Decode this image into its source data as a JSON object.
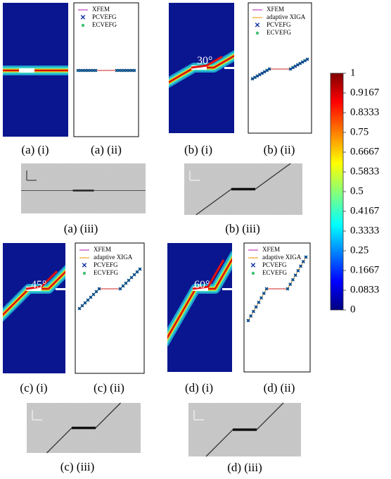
{
  "panels": {
    "a_i": {
      "caption": "(a) (i)"
    },
    "a_ii": {
      "caption": "(a) (ii)",
      "legend": [
        "XFEM",
        "PCVEFG",
        "ECVEFG"
      ]
    },
    "b_i": {
      "caption": "(b) (i)",
      "angle": "30°"
    },
    "b_ii": {
      "caption": "(b) (ii)",
      "legend": [
        "XFEM",
        "adaptive XIGA",
        "PCVEFG",
        "ECVEFG"
      ]
    },
    "a_iii": {
      "caption": "(a) (iii)"
    },
    "b_iii": {
      "caption": "(b) (iii)"
    },
    "c_i": {
      "caption": "(c) (i)",
      "angle": "45°"
    },
    "c_ii": {
      "caption": "(c) (ii)",
      "legend": [
        "XFEM",
        "adaptive XIGA",
        "PCVEFG",
        "ECVEFG"
      ]
    },
    "d_i": {
      "caption": "(d) (i)",
      "angle": "60°"
    },
    "d_ii": {
      "caption": "(d) (ii)",
      "legend": [
        "XFEM",
        "adaptive XIGA",
        "PCVEFG",
        "ECVEFG"
      ]
    },
    "c_iii": {
      "caption": "(c) (iii)"
    },
    "d_iii": {
      "caption": "(d) (iii)"
    }
  },
  "colorbar": {
    "ticks": [
      1,
      0.9167,
      0.8333,
      0.75,
      0.6667,
      0.5833,
      0.5,
      0.4167,
      0.3333,
      0.25,
      0.1667,
      0.0833,
      0
    ]
  }
}
